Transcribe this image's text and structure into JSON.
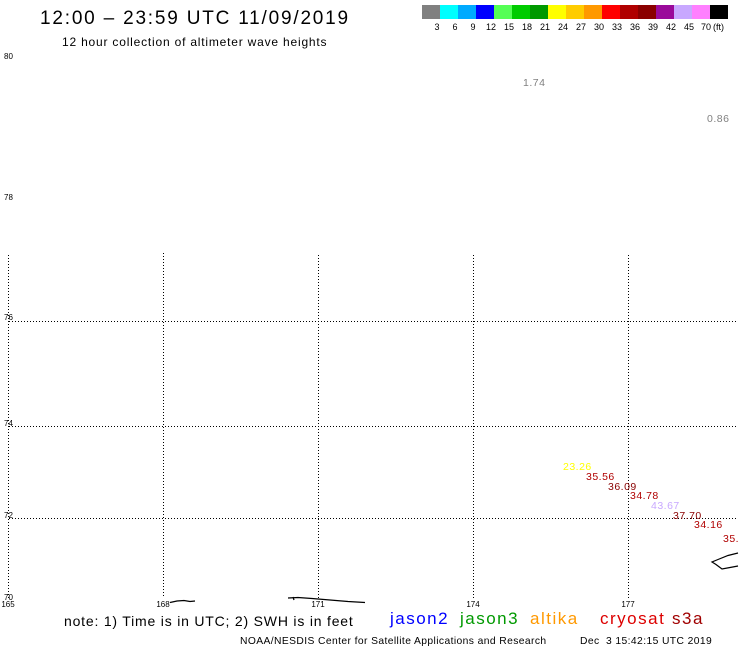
{
  "header": {
    "title": "12:00 – 23:59 UTC 11/09/2019",
    "subtitle": "12 hour collection of altimeter wave heights"
  },
  "color_scale": {
    "colors": [
      "#808080",
      "#00ffff",
      "#00aaff",
      "#0000ff",
      "#55ff55",
      "#00cc00",
      "#009900",
      "#ffff00",
      "#ffcc00",
      "#ff9900",
      "#ff0000",
      "#b00000",
      "#8a0000",
      "#9a0a9a",
      "#c8a8ff",
      "#ff80ff",
      "#000000"
    ],
    "labels": [
      "3",
      "6",
      "9",
      "12",
      "15",
      "18",
      "21",
      "24",
      "27",
      "30",
      "33",
      "36",
      "39",
      "42",
      "45",
      "70"
    ],
    "unit": "(ft)"
  },
  "map": {
    "lat_labels": [
      "80",
      "78",
      "76",
      "74",
      "72",
      "70"
    ],
    "lon_labels": [
      "165",
      "168",
      "171",
      "174",
      "177"
    ],
    "observations": [
      {
        "value": "1.74"
      },
      {
        "value": "0.86"
      },
      {
        "value": "23.26"
      },
      {
        "value": "35.56"
      },
      {
        "value": "36.09"
      },
      {
        "value": "34.78"
      },
      {
        "value": "43.67"
      },
      {
        "value": "37.70"
      },
      {
        "value": "34.16"
      },
      {
        "value": "35."
      }
    ]
  },
  "legend": {
    "note": "note: 1) Time is in UTC; 2) SWH is in feet",
    "satellites": [
      {
        "name": "jason2",
        "color": "#0000ff"
      },
      {
        "name": "jason3",
        "color": "#009900"
      },
      {
        "name": "altika",
        "color": "#ff9900"
      },
      {
        "name": "cryosat",
        "color": "#dd0000"
      },
      {
        "name": "s3a",
        "color": "#a00000"
      }
    ]
  },
  "footer": {
    "credit": "NOAA/NESDIS Center for Satellite Applications and Research",
    "timestamp": "Dec  3 15:42:15 UTC 2019"
  }
}
